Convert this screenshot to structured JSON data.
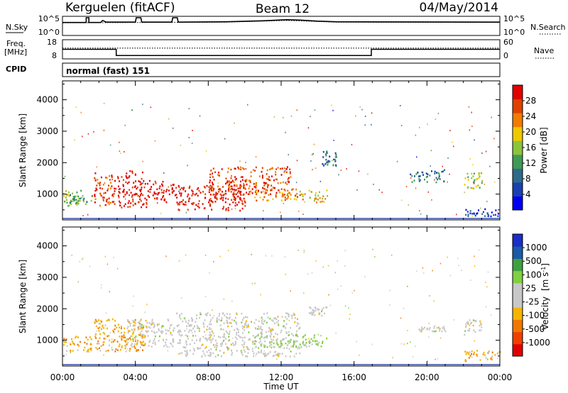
{
  "header": {
    "radar": "Kerguelen (fitACF)",
    "beam": "Beam 12",
    "date": "04/May/2014"
  },
  "panel_nsky": {
    "left_label": "N.Sky",
    "right_label": "N.Search",
    "left_ticks": [
      "10^5",
      "10^0"
    ],
    "right_ticks": [
      "10^5",
      "10^0"
    ]
  },
  "panel_freq": {
    "left_label_1": "Freq.",
    "left_label_2": "[MHz]",
    "right_label": "Nave",
    "left_ticks": [
      "18",
      "8"
    ],
    "right_ticks": [
      "60",
      "0"
    ]
  },
  "panel_cpid": {
    "label": "CPID",
    "value": "normal (fast) 151"
  },
  "colors": {
    "power_scale": [
      "#0000f0",
      "#1a3fb0",
      "#2e6a8a",
      "#3f9a55",
      "#8bc43a",
      "#f0c800",
      "#f07c00",
      "#e04000",
      "#e00000"
    ],
    "velocity_scale": [
      "#e00000",
      "#f04000",
      "#f07800",
      "#f4b400",
      "#c8c8c8",
      "#c8c8c8",
      "#80d040",
      "#3fa040",
      "#1a5aa8",
      "#1a2ec8"
    ]
  },
  "chart_data": [
    {
      "type": "line",
      "title": "",
      "xlabel": "",
      "ylabel": "",
      "xlim": [
        "00:00",
        "24:00"
      ],
      "series": [
        {
          "name": "N.Sky",
          "style": "solid",
          "description_values": [
            [
              0.0,
              3.6
            ],
            [
              1.3,
              3.6
            ],
            [
              1.3,
              5.0
            ],
            [
              1.45,
              5.0
            ],
            [
              1.45,
              3.6
            ],
            [
              2.1,
              3.6
            ],
            [
              2.2,
              4.2
            ],
            [
              2.4,
              3.7
            ],
            [
              4.0,
              3.7
            ],
            [
              4.05,
              5.0
            ],
            [
              4.3,
              5.0
            ],
            [
              4.35,
              3.7
            ],
            [
              6.0,
              3.7
            ],
            [
              6.05,
              5.0
            ],
            [
              6.3,
              5.0
            ],
            [
              6.35,
              3.7
            ],
            [
              9.0,
              3.8
            ],
            [
              11.0,
              4.1
            ],
            [
              12.3,
              4.4
            ],
            [
              13.0,
              4.3
            ],
            [
              14.0,
              4.0
            ],
            [
              15.0,
              3.8
            ],
            [
              24.0,
              3.7
            ]
          ]
        },
        {
          "name": "N.Search",
          "style": "dotted",
          "description_values": [
            [
              0.0,
              3.5
            ],
            [
              9.0,
              3.7
            ],
            [
              12.3,
              4.2
            ],
            [
              15.0,
              3.7
            ],
            [
              24.0,
              3.6
            ]
          ]
        }
      ]
    },
    {
      "type": "line",
      "title": "",
      "xlabel": "",
      "ylabel": "Freq. [MHz]",
      "xlim": [
        "00:00",
        "24:00"
      ],
      "series": [
        {
          "name": "Freq.",
          "style": "solid",
          "description_values": [
            [
              0.0,
              13.0
            ],
            [
              2.95,
              13.0
            ],
            [
              2.95,
              9.5
            ],
            [
              16.95,
              9.5
            ],
            [
              16.95,
              13.0
            ],
            [
              24.0,
              13.0
            ]
          ]
        },
        {
          "name": "Nave",
          "style": "dotted",
          "description_values": [
            [
              0.0,
              34
            ],
            [
              24.0,
              34
            ]
          ]
        }
      ]
    },
    {
      "type": "heatmap",
      "title": "",
      "xlabel": "",
      "ylabel": "Slant Range [km]",
      "colorbar_label": "Power [dB]",
      "colorbar_ticks": [
        "28",
        "24",
        "20",
        "16",
        "12",
        "8",
        "4"
      ],
      "x_ticks": [
        "00:00",
        "04:00",
        "08:00",
        "12:00",
        "16:00",
        "20:00",
        "00:00"
      ],
      "y_ticks": [
        "1000",
        "2000",
        "3000",
        "4000"
      ],
      "xlim": [
        0,
        24
      ],
      "ylim": [
        180,
        4600
      ],
      "regions": [
        {
          "x": [
            0.0,
            1.0
          ],
          "y": [
            650,
            1150
          ],
          "level": 4
        },
        {
          "x": [
            0.3,
            1.6
          ],
          "y": [
            700,
            1000
          ],
          "level": 3
        },
        {
          "x": [
            1.7,
            2.9
          ],
          "y": [
            650,
            1700
          ],
          "level": 7
        },
        {
          "x": [
            3.0,
            4.6
          ],
          "y": [
            600,
            1800
          ],
          "level": 8
        },
        {
          "x": [
            4.6,
            6.2
          ],
          "y": [
            750,
            1450
          ],
          "level": 8
        },
        {
          "x": [
            6.2,
            10.0
          ],
          "y": [
            500,
            1300
          ],
          "level": 8
        },
        {
          "x": [
            8.0,
            12.5
          ],
          "y": [
            1000,
            1900
          ],
          "level": 7
        },
        {
          "x": [
            10.5,
            13.0
          ],
          "y": [
            800,
            1200
          ],
          "level": 6
        },
        {
          "x": [
            13.0,
            14.5
          ],
          "y": [
            750,
            1150
          ],
          "level": 5
        },
        {
          "x": [
            14.2,
            15.0
          ],
          "y": [
            1900,
            2400
          ],
          "level": 2
        },
        {
          "x": [
            19.0,
            21.0
          ],
          "y": [
            1400,
            1800
          ],
          "level": 2
        },
        {
          "x": [
            22.0,
            23.0
          ],
          "y": [
            1200,
            1700
          ],
          "level": 4
        },
        {
          "x": [
            22.0,
            24.0
          ],
          "y": [
            300,
            550
          ],
          "level": 1
        }
      ]
    },
    {
      "type": "heatmap",
      "title": "",
      "xlabel": "Time UT",
      "ylabel": "Slant Range [km]",
      "colorbar_label": "Velocity [m s^-1]",
      "colorbar_ticks": [
        "1000",
        "500",
        "100",
        "25",
        "-25",
        "-100",
        "-500",
        "-1000"
      ],
      "x_ticks": [
        "00:00",
        "04:00",
        "08:00",
        "12:00",
        "16:00",
        "20:00",
        "00:00"
      ],
      "y_ticks": [
        "1000",
        "2000",
        "3000",
        "4000"
      ],
      "xlim": [
        0,
        24
      ],
      "ylim": [
        180,
        4600
      ],
      "regions": [
        {
          "x": [
            0.0,
            1.6
          ],
          "y": [
            650,
            1150
          ],
          "level": -100
        },
        {
          "x": [
            1.7,
            4.6
          ],
          "y": [
            650,
            1700
          ],
          "level": -100
        },
        {
          "x": [
            3.5,
            6.2
          ],
          "y": [
            800,
            1700
          ],
          "level": 0
        },
        {
          "x": [
            6.2,
            13.0
          ],
          "y": [
            500,
            1900
          ],
          "level": 0
        },
        {
          "x": [
            10.5,
            14.5
          ],
          "y": [
            800,
            1200
          ],
          "level": 100
        },
        {
          "x": [
            13.5,
            14.5
          ],
          "y": [
            1800,
            2100
          ],
          "level": 0
        },
        {
          "x": [
            19.5,
            21.0
          ],
          "y": [
            1300,
            1500
          ],
          "level": 0
        },
        {
          "x": [
            22.0,
            23.0
          ],
          "y": [
            1200,
            1700
          ],
          "level": 0
        },
        {
          "x": [
            22.0,
            24.0
          ],
          "y": [
            350,
            700
          ],
          "level": -100
        }
      ]
    }
  ],
  "axes_labels": {
    "time": "Time UT",
    "slant_range": "Slant Range [km]",
    "power": "Power [dB]",
    "velocity": "Velocity",
    "velocity_unit": "[m s",
    "velocity_unit_sup": "-1",
    "velocity_unit_end": "]"
  }
}
